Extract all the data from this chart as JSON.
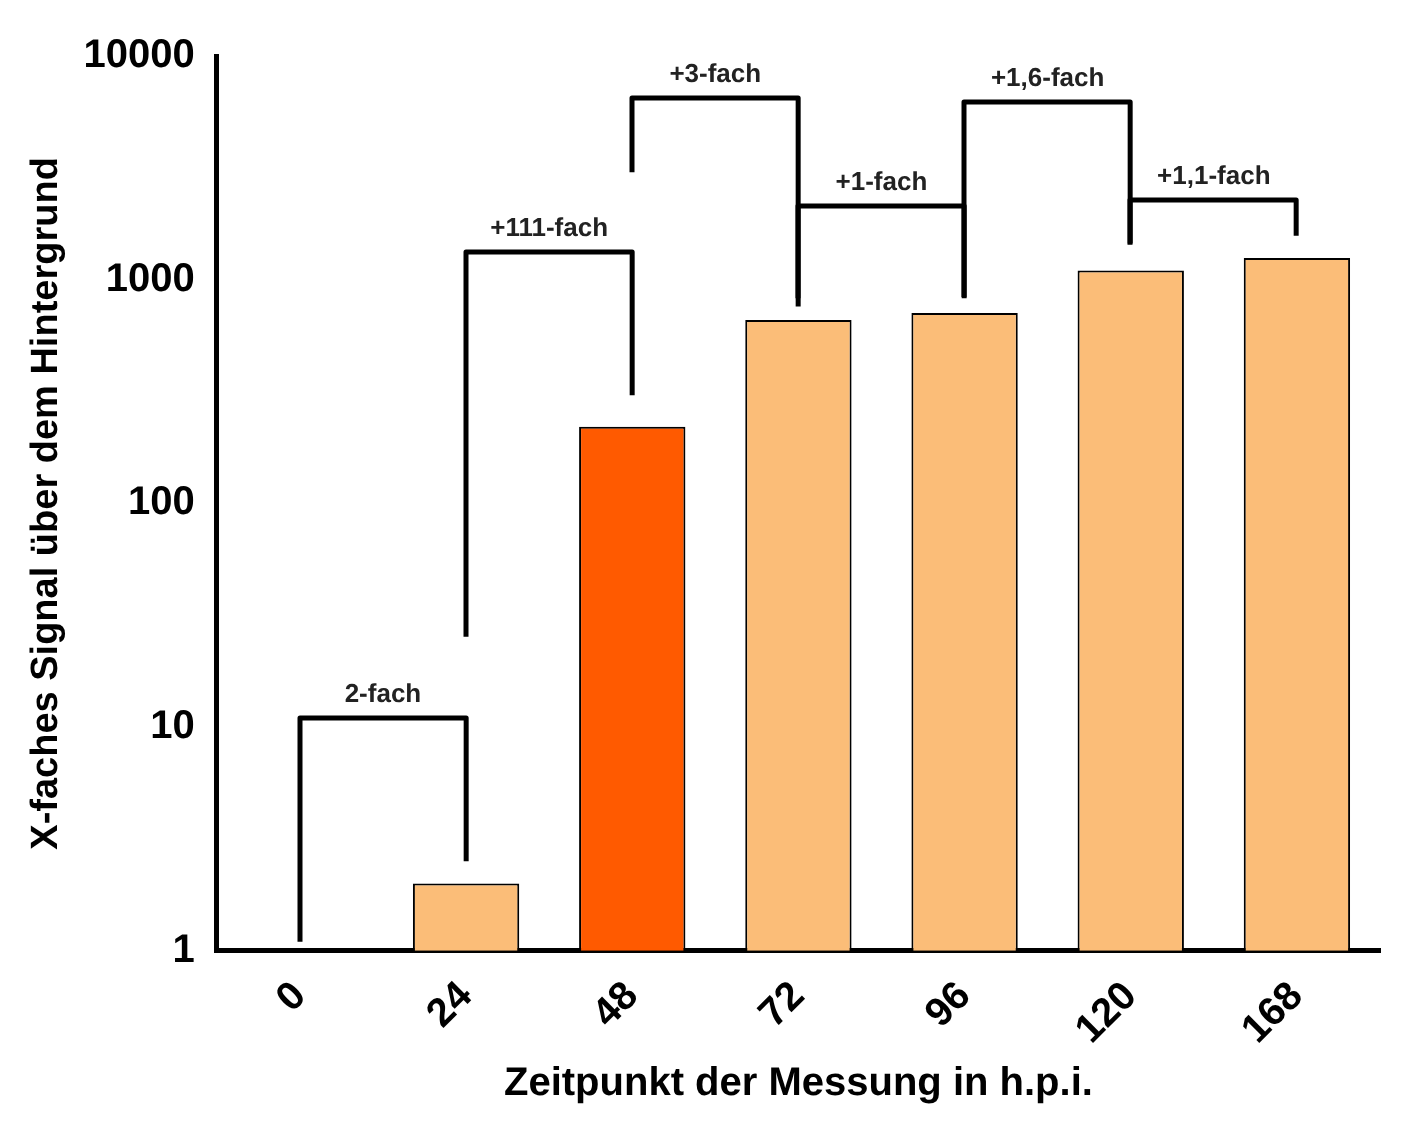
{
  "chart_data": {
    "type": "bar",
    "xlabel": "Zeitpunkt der Messung in h.p.i.",
    "ylabel": "X-faches Signal über dem Hintergrund",
    "categories": [
      "0",
      "24",
      "48",
      "72",
      "96",
      "120",
      "168"
    ],
    "values": [
      1,
      2,
      220,
      660,
      710,
      1100,
      1250
    ],
    "colors": [
      "#fbbd78",
      "#fbbd78",
      "#ff5a00",
      "#fbbd78",
      "#fbbd78",
      "#fbbd78",
      "#fbbd78"
    ],
    "log": "y",
    "ylim": [
      1,
      10000
    ],
    "yticks": [
      1,
      10,
      100,
      1000,
      10000
    ],
    "grid": false,
    "legend": false,
    "annotations": [
      "2-fach",
      "+111-fach",
      "+3-fach",
      "+1-fach",
      "+1,6-fach",
      "+1,1-fach"
    ]
  }
}
